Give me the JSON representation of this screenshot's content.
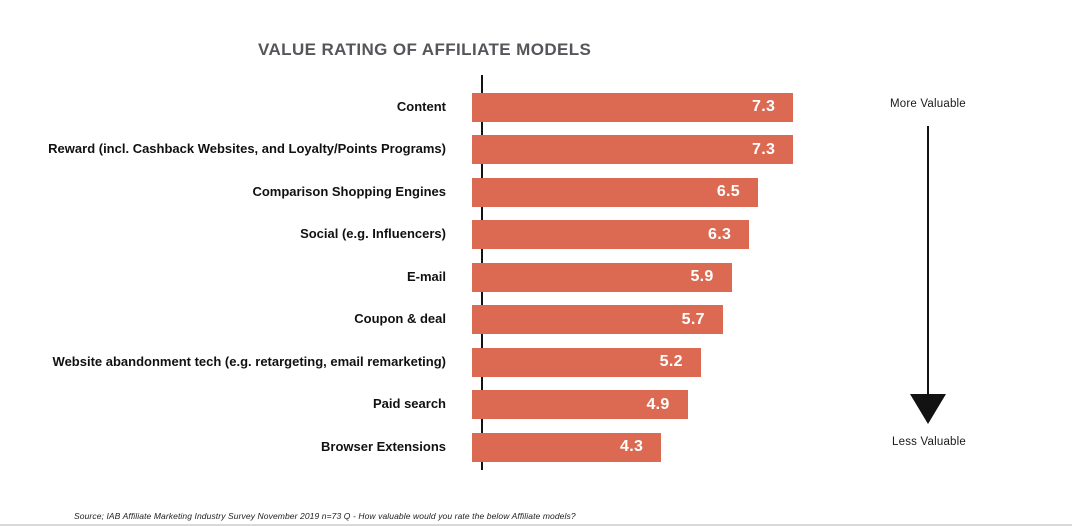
{
  "chart_data": {
    "type": "bar",
    "orientation": "horizontal",
    "title": "VALUE RATING OF AFFILIATE MODELS",
    "categories": [
      "Content",
      "Reward (incl. Cashback Websites, and Loyalty/Points Programs)",
      "Comparison Shopping Engines",
      "Social (e.g. Influencers)",
      "E-mail",
      "Coupon & deal",
      "Website abandonment tech (e.g. retargeting, email remarketing)",
      "Paid search",
      "Browser Extensions"
    ],
    "values": [
      7.3,
      7.3,
      6.5,
      6.3,
      5.9,
      5.7,
      5.2,
      4.9,
      4.3
    ],
    "xlabel": "",
    "ylabel": "",
    "xlim": [
      0,
      8
    ],
    "grid": false,
    "legend": "none",
    "bar_color": "#dc6a52",
    "value_label_color": "#ffffff",
    "axis_color": "#121212",
    "annotations": {
      "top": "More Valuable",
      "bottom": "Less Valuable"
    }
  },
  "source_note": "Source; IAB Affiliate Marketing Industry Survey November 2019 n=73 Q - How valuable would you rate the below Affiliate models?"
}
